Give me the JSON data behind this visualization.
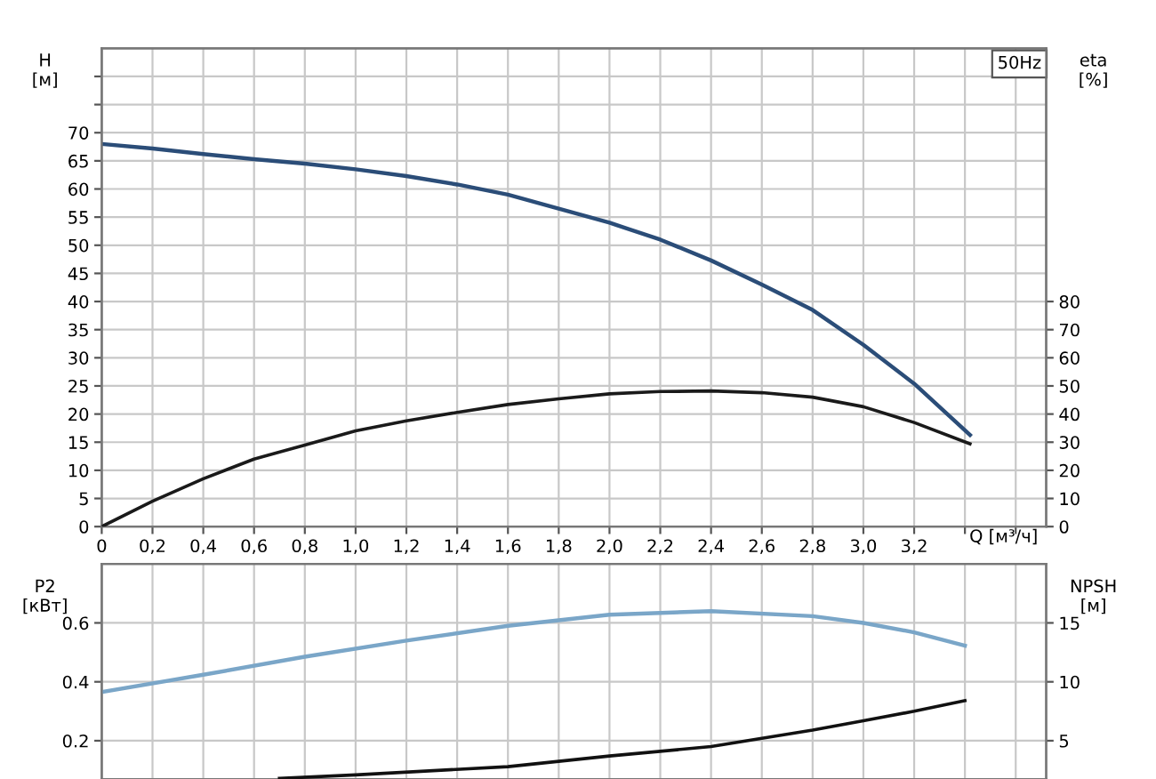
{
  "chart_data": [
    {
      "type": "line",
      "annotations": [
        "50Hz"
      ],
      "xlabel": "Q [м³/ч]",
      "ylabel": "H\n[м]",
      "y2label": "eta\n[%]",
      "x": [
        0,
        0.2,
        0.4,
        0.6,
        0.8,
        1.0,
        1.2,
        1.4,
        1.6,
        1.8,
        2.0,
        2.2,
        2.4,
        2.6,
        2.8,
        3.0,
        3.2,
        3.42
      ],
      "series": [
        {
          "color": "#2b4d78",
          "values": [
            68,
            67.2,
            66.2,
            65.3,
            64.5,
            63.5,
            62.3,
            60.8,
            59,
            56.5,
            54,
            51,
            47.3,
            43,
            38.5,
            32.3,
            25.4,
            16.3
          ]
        },
        {
          "color": "#1a1a1a",
          "axis": "y2",
          "values": [
            0,
            9,
            17,
            24,
            29,
            34,
            37.6,
            40.6,
            43.4,
            45.4,
            47.2,
            48,
            48.2,
            47.6,
            46,
            42.6,
            37,
            29.4
          ]
        }
      ],
      "xlim": [
        0,
        3.72
      ],
      "xticks": [
        {
          "value": 0,
          "label": "0"
        },
        {
          "value": 0.2,
          "label": "0,2"
        },
        {
          "value": 0.4,
          "label": "0,4"
        },
        {
          "value": 0.6,
          "label": "0,6"
        },
        {
          "value": 0.8,
          "label": "0,8"
        },
        {
          "value": 1.0,
          "label": "1,0"
        },
        {
          "value": 1.2,
          "label": "1,2"
        },
        {
          "value": 1.4,
          "label": "1,4"
        },
        {
          "value": 1.6,
          "label": "1,6"
        },
        {
          "value": 1.8,
          "label": "1,8"
        },
        {
          "value": 2.0,
          "label": "2,0"
        },
        {
          "value": 2.2,
          "label": "2,2"
        },
        {
          "value": 2.4,
          "label": "2,4"
        },
        {
          "value": 2.6,
          "label": "2,6"
        },
        {
          "value": 2.8,
          "label": "2,8"
        },
        {
          "value": 3.0,
          "label": "3,0"
        },
        {
          "value": 3.2,
          "label": "3,2"
        },
        {
          "value": 3.4,
          "label": null
        },
        {
          "value": 3.6,
          "label": null
        }
      ],
      "ylim": [
        0,
        85
      ],
      "yticks": [
        0,
        5,
        10,
        15,
        20,
        25,
        30,
        35,
        40,
        45,
        50,
        55,
        60,
        65,
        70,
        {
          "value": 75,
          "label": null
        },
        {
          "value": 80,
          "label": null
        }
      ],
      "y2lim": [
        0,
        170
      ],
      "y2ticks": [
        0,
        10,
        20,
        30,
        40,
        50,
        60,
        70,
        80
      ],
      "grid": true,
      "legend": false,
      "marker": "none",
      "line_style": "solid"
    },
    {
      "type": "line",
      "tick_labels": "y",
      "ylabel": "P2\n[кВт]",
      "y2label": "NPSH\n[м]",
      "series": [
        {
          "color": "#7aa6c8",
          "x": [
            0,
            0.4,
            0.8,
            1.2,
            1.6,
            2.0,
            2.4,
            2.8,
            3.0,
            3.2,
            3.4
          ],
          "values": [
            0.365,
            0.424,
            0.485,
            0.54,
            0.59,
            0.628,
            0.64,
            0.623,
            0.6,
            0.568,
            0.523
          ]
        },
        {
          "color": "#111111",
          "axis": "y2",
          "x": [
            0.7,
            1.0,
            1.6,
            2.0,
            2.4,
            2.8,
            3.0,
            3.2,
            3.4
          ],
          "values": [
            1.8,
            2.1,
            2.8,
            3.7,
            4.5,
            5.9,
            6.7,
            7.5,
            8.4
          ]
        }
      ],
      "xlim": [
        0,
        3.72
      ],
      "xticks": [
        0,
        0.2,
        0.4,
        0.6,
        0.8,
        1.0,
        1.2,
        1.4,
        1.6,
        1.8,
        2.0,
        2.2,
        2.4,
        2.6,
        2.8,
        3.0,
        3.2,
        3.4,
        3.6
      ],
      "ylim": [
        0.07,
        0.8
      ],
      "yticks": [
        0.2,
        0.4,
        0.6
      ],
      "y2lim": [
        1.75,
        20
      ],
      "y2ticks": [
        5,
        10,
        15
      ],
      "grid": true,
      "legend": false,
      "marker": "none",
      "line_style": "solid"
    }
  ]
}
